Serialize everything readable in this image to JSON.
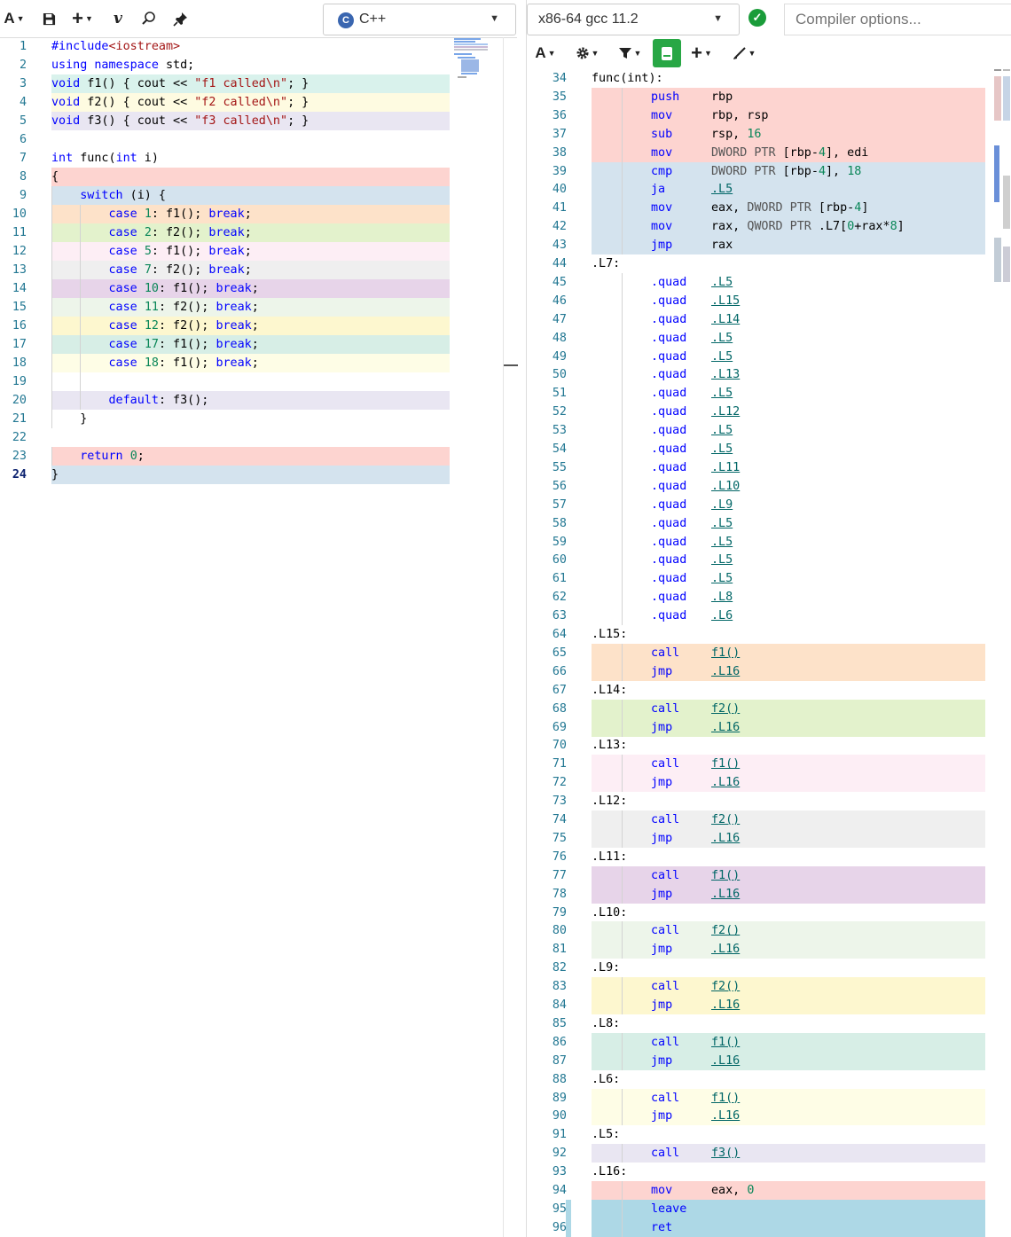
{
  "left_toolbar": {
    "font_btn": "A",
    "save_icon": "save-icon",
    "add_btn": "+",
    "vim_btn": "v",
    "search_icon": "search-icon",
    "pin_icon": "pin-icon",
    "language": "C++",
    "language_logo": "C"
  },
  "source": {
    "current_line": 24,
    "lines": [
      {
        "n": 1,
        "t": "#include<iostream>",
        "bg": "",
        "ind": 0
      },
      {
        "n": 2,
        "t": "using namespace std;",
        "bg": "",
        "ind": 0
      },
      {
        "n": 3,
        "t": "void f1() { cout << \"f1 called\\n\"; }",
        "bg": "#d9f2ec",
        "ind": 0
      },
      {
        "n": 4,
        "t": "void f2() { cout << \"f2 called\\n\"; }",
        "bg": "#fefbe1",
        "ind": 0
      },
      {
        "n": 5,
        "t": "void f3() { cout << \"f3 called\\n\"; }",
        "bg": "#e9e6f2",
        "ind": 0
      },
      {
        "n": 6,
        "t": "",
        "bg": "",
        "ind": 0
      },
      {
        "n": 7,
        "t": "int func(int i)",
        "bg": "",
        "ind": 0
      },
      {
        "n": 8,
        "t": "{",
        "bg": "#fdd4d0",
        "ind": 0
      },
      {
        "n": 9,
        "t": "    switch (i) {",
        "bg": "#d4e3ee",
        "ind": 1
      },
      {
        "n": 10,
        "t": "        case 1: f1(); break;",
        "bg": "#fde2c9",
        "ind": 2
      },
      {
        "n": 11,
        "t": "        case 2: f2(); break;",
        "bg": "#e3f2cc",
        "ind": 2
      },
      {
        "n": 12,
        "t": "        case 5: f1(); break;",
        "bg": "#fdeef5",
        "ind": 2
      },
      {
        "n": 13,
        "t": "        case 7: f2(); break;",
        "bg": "#efefef",
        "ind": 2
      },
      {
        "n": 14,
        "t": "        case 10: f1(); break;",
        "bg": "#e7d4e9",
        "ind": 2
      },
      {
        "n": 15,
        "t": "        case 11: f2(); break;",
        "bg": "#edf5ea",
        "ind": 2
      },
      {
        "n": 16,
        "t": "        case 12: f2(); break;",
        "bg": "#fdf7cf",
        "ind": 2
      },
      {
        "n": 17,
        "t": "        case 17: f1(); break;",
        "bg": "#d7eee6",
        "ind": 2
      },
      {
        "n": 18,
        "t": "        case 18: f1(); break;",
        "bg": "#fefde6",
        "ind": 2
      },
      {
        "n": 19,
        "t": "",
        "bg": "",
        "ind": 2
      },
      {
        "n": 20,
        "t": "        default: f3();",
        "bg": "#e9e6f2",
        "ind": 2
      },
      {
        "n": 21,
        "t": "    }",
        "bg": "",
        "ind": 1
      },
      {
        "n": 22,
        "t": "",
        "bg": "",
        "ind": 0
      },
      {
        "n": 23,
        "t": "    return 0;",
        "bg": "#fdd4d0",
        "ind": 1
      },
      {
        "n": 24,
        "t": "}",
        "bg": "#d4e3ee",
        "ind": 0
      }
    ]
  },
  "right_toolbar": {
    "compiler": "x86-64 gcc 11.2",
    "status_icon": "check-icon",
    "options_placeholder": "Compiler options...",
    "font_btn": "A",
    "gear_icon": "gear-icon",
    "filter_icon": "filter-icon",
    "output_icon": "book-icon",
    "add_btn": "+",
    "tools_icon": "brush-icon"
  },
  "asm": {
    "lines": [
      {
        "n": 34,
        "label": "func(int):",
        "bg": ""
      },
      {
        "n": 35,
        "ins": "push",
        "op": "rbp",
        "bg": "#fdd4d0"
      },
      {
        "n": 36,
        "ins": "mov",
        "op": "rbp, rsp",
        "bg": "#fdd4d0"
      },
      {
        "n": 37,
        "ins": "sub",
        "op": "rsp, 16",
        "bg": "#fdd4d0"
      },
      {
        "n": 38,
        "ins": "mov",
        "op": "DWORD PTR [rbp-4], edi",
        "bg": "#fdd4d0"
      },
      {
        "n": 39,
        "ins": "cmp",
        "op": "DWORD PTR [rbp-4], 18",
        "bg": "#d4e3ee"
      },
      {
        "n": 40,
        "ins": "ja",
        "op": ".L5",
        "link": true,
        "bg": "#d4e3ee"
      },
      {
        "n": 41,
        "ins": "mov",
        "op": "eax, DWORD PTR [rbp-4]",
        "bg": "#d4e3ee"
      },
      {
        "n": 42,
        "ins": "mov",
        "op": "rax, QWORD PTR .L7[0+rax*8]",
        "bg": "#d4e3ee"
      },
      {
        "n": 43,
        "ins": "jmp",
        "op": "rax",
        "bg": "#d4e3ee"
      },
      {
        "n": 44,
        "label": ".L7:",
        "bg": ""
      },
      {
        "n": 45,
        "ins": ".quad",
        "op": ".L5",
        "link": true,
        "bg": ""
      },
      {
        "n": 46,
        "ins": ".quad",
        "op": ".L15",
        "link": true,
        "bg": ""
      },
      {
        "n": 47,
        "ins": ".quad",
        "op": ".L14",
        "link": true,
        "bg": ""
      },
      {
        "n": 48,
        "ins": ".quad",
        "op": ".L5",
        "link": true,
        "bg": ""
      },
      {
        "n": 49,
        "ins": ".quad",
        "op": ".L5",
        "link": true,
        "bg": ""
      },
      {
        "n": 50,
        "ins": ".quad",
        "op": ".L13",
        "link": true,
        "bg": ""
      },
      {
        "n": 51,
        "ins": ".quad",
        "op": ".L5",
        "link": true,
        "bg": ""
      },
      {
        "n": 52,
        "ins": ".quad",
        "op": ".L12",
        "link": true,
        "bg": ""
      },
      {
        "n": 53,
        "ins": ".quad",
        "op": ".L5",
        "link": true,
        "bg": ""
      },
      {
        "n": 54,
        "ins": ".quad",
        "op": ".L5",
        "link": true,
        "bg": ""
      },
      {
        "n": 55,
        "ins": ".quad",
        "op": ".L11",
        "link": true,
        "bg": ""
      },
      {
        "n": 56,
        "ins": ".quad",
        "op": ".L10",
        "link": true,
        "bg": ""
      },
      {
        "n": 57,
        "ins": ".quad",
        "op": ".L9",
        "link": true,
        "bg": ""
      },
      {
        "n": 58,
        "ins": ".quad",
        "op": ".L5",
        "link": true,
        "bg": ""
      },
      {
        "n": 59,
        "ins": ".quad",
        "op": ".L5",
        "link": true,
        "bg": ""
      },
      {
        "n": 60,
        "ins": ".quad",
        "op": ".L5",
        "link": true,
        "bg": ""
      },
      {
        "n": 61,
        "ins": ".quad",
        "op": ".L5",
        "link": true,
        "bg": ""
      },
      {
        "n": 62,
        "ins": ".quad",
        "op": ".L8",
        "link": true,
        "bg": ""
      },
      {
        "n": 63,
        "ins": ".quad",
        "op": ".L6",
        "link": true,
        "bg": ""
      },
      {
        "n": 64,
        "label": ".L15:",
        "bg": ""
      },
      {
        "n": 65,
        "ins": "call",
        "op": "f1()",
        "link": true,
        "bg": "#fde2c9"
      },
      {
        "n": 66,
        "ins": "jmp",
        "op": ".L16",
        "link": true,
        "bg": "#fde2c9"
      },
      {
        "n": 67,
        "label": ".L14:",
        "bg": ""
      },
      {
        "n": 68,
        "ins": "call",
        "op": "f2()",
        "link": true,
        "bg": "#e3f2cc"
      },
      {
        "n": 69,
        "ins": "jmp",
        "op": ".L16",
        "link": true,
        "bg": "#e3f2cc"
      },
      {
        "n": 70,
        "label": ".L13:",
        "bg": ""
      },
      {
        "n": 71,
        "ins": "call",
        "op": "f1()",
        "link": true,
        "bg": "#fdeef5"
      },
      {
        "n": 72,
        "ins": "jmp",
        "op": ".L16",
        "link": true,
        "bg": "#fdeef5"
      },
      {
        "n": 73,
        "label": ".L12:",
        "bg": ""
      },
      {
        "n": 74,
        "ins": "call",
        "op": "f2()",
        "link": true,
        "bg": "#efefef"
      },
      {
        "n": 75,
        "ins": "jmp",
        "op": ".L16",
        "link": true,
        "bg": "#efefef"
      },
      {
        "n": 76,
        "label": ".L11:",
        "bg": ""
      },
      {
        "n": 77,
        "ins": "call",
        "op": "f1()",
        "link": true,
        "bg": "#e7d4e9"
      },
      {
        "n": 78,
        "ins": "jmp",
        "op": ".L16",
        "link": true,
        "bg": "#e7d4e9"
      },
      {
        "n": 79,
        "label": ".L10:",
        "bg": ""
      },
      {
        "n": 80,
        "ins": "call",
        "op": "f2()",
        "link": true,
        "bg": "#edf5ea"
      },
      {
        "n": 81,
        "ins": "jmp",
        "op": ".L16",
        "link": true,
        "bg": "#edf5ea"
      },
      {
        "n": 82,
        "label": ".L9:",
        "bg": ""
      },
      {
        "n": 83,
        "ins": "call",
        "op": "f2()",
        "link": true,
        "bg": "#fdf7cf"
      },
      {
        "n": 84,
        "ins": "jmp",
        "op": ".L16",
        "link": true,
        "bg": "#fdf7cf"
      },
      {
        "n": 85,
        "label": ".L8:",
        "bg": ""
      },
      {
        "n": 86,
        "ins": "call",
        "op": "f1()",
        "link": true,
        "bg": "#d7eee6"
      },
      {
        "n": 87,
        "ins": "jmp",
        "op": ".L16",
        "link": true,
        "bg": "#d7eee6"
      },
      {
        "n": 88,
        "label": ".L6:",
        "bg": ""
      },
      {
        "n": 89,
        "ins": "call",
        "op": "f1()",
        "link": true,
        "bg": "#fefde6"
      },
      {
        "n": 90,
        "ins": "jmp",
        "op": ".L16",
        "link": true,
        "bg": "#fefde6"
      },
      {
        "n": 91,
        "label": ".L5:",
        "bg": ""
      },
      {
        "n": 92,
        "ins": "call",
        "op": "f3()",
        "link": true,
        "bg": "#e9e6f2"
      },
      {
        "n": 93,
        "label": ".L16:",
        "bg": ""
      },
      {
        "n": 94,
        "ins": "mov",
        "op": "eax, 0",
        "bg": "#fdd4d0"
      },
      {
        "n": 95,
        "ins": "leave",
        "op": "",
        "bg": "#add8e6",
        "gutter": true
      },
      {
        "n": 96,
        "ins": "ret",
        "op": "",
        "bg": "#add8e6",
        "gutter": true
      }
    ]
  },
  "colors": {
    "line_number": "#237893",
    "keyword": "#0000ff",
    "string": "#a31515",
    "number": "#098658",
    "link": "#006666",
    "status_ok": "#1a9c3a",
    "output_btn": "#28a745"
  }
}
